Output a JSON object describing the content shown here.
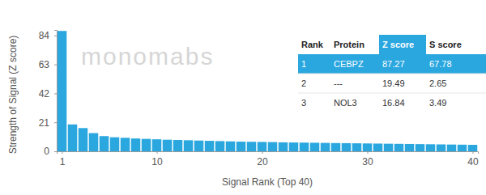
{
  "chart_data": {
    "type": "bar",
    "x_label": "Signal Rank (Top 40)",
    "y_label": "Strength of Signal (Z score)",
    "watermark": "monomabs",
    "x": [
      1,
      2,
      3,
      4,
      5,
      6,
      7,
      8,
      9,
      10,
      11,
      12,
      13,
      14,
      15,
      16,
      17,
      18,
      19,
      20,
      21,
      22,
      23,
      24,
      25,
      26,
      27,
      28,
      29,
      30,
      31,
      32,
      33,
      34,
      35,
      36,
      37,
      38,
      39,
      40
    ],
    "values": [
      87.27,
      19.49,
      16.84,
      13.2,
      11.0,
      10.2,
      9.8,
      9.3,
      9.0,
      8.7,
      8.4,
      8.2,
      8.0,
      7.8,
      7.6,
      7.4,
      7.2,
      7.0,
      6.9,
      6.8,
      6.7,
      6.5,
      6.4,
      6.3,
      6.2,
      6.1,
      6.0,
      5.9,
      5.8,
      5.7,
      5.6,
      5.5,
      5.4,
      5.3,
      5.2,
      5.1,
      5.0,
      4.9,
      4.8,
      4.7
    ],
    "color": "#2aa7df",
    "xlim": [
      0.5,
      40.5
    ],
    "xticks": [
      1,
      10,
      20,
      30,
      40
    ],
    "ylim": [
      0,
      88
    ],
    "yticks": [
      0,
      21,
      42,
      63,
      84
    ],
    "grid": false,
    "table": {
      "columns": [
        "Rank",
        "Protein",
        "Z score",
        "S score"
      ],
      "rows": [
        [
          1,
          "CEBPZ",
          87.27,
          67.78
        ],
        [
          2,
          "---",
          19.49,
          2.65
        ],
        [
          3,
          "NOL3",
          16.84,
          3.49
        ]
      ]
    }
  }
}
